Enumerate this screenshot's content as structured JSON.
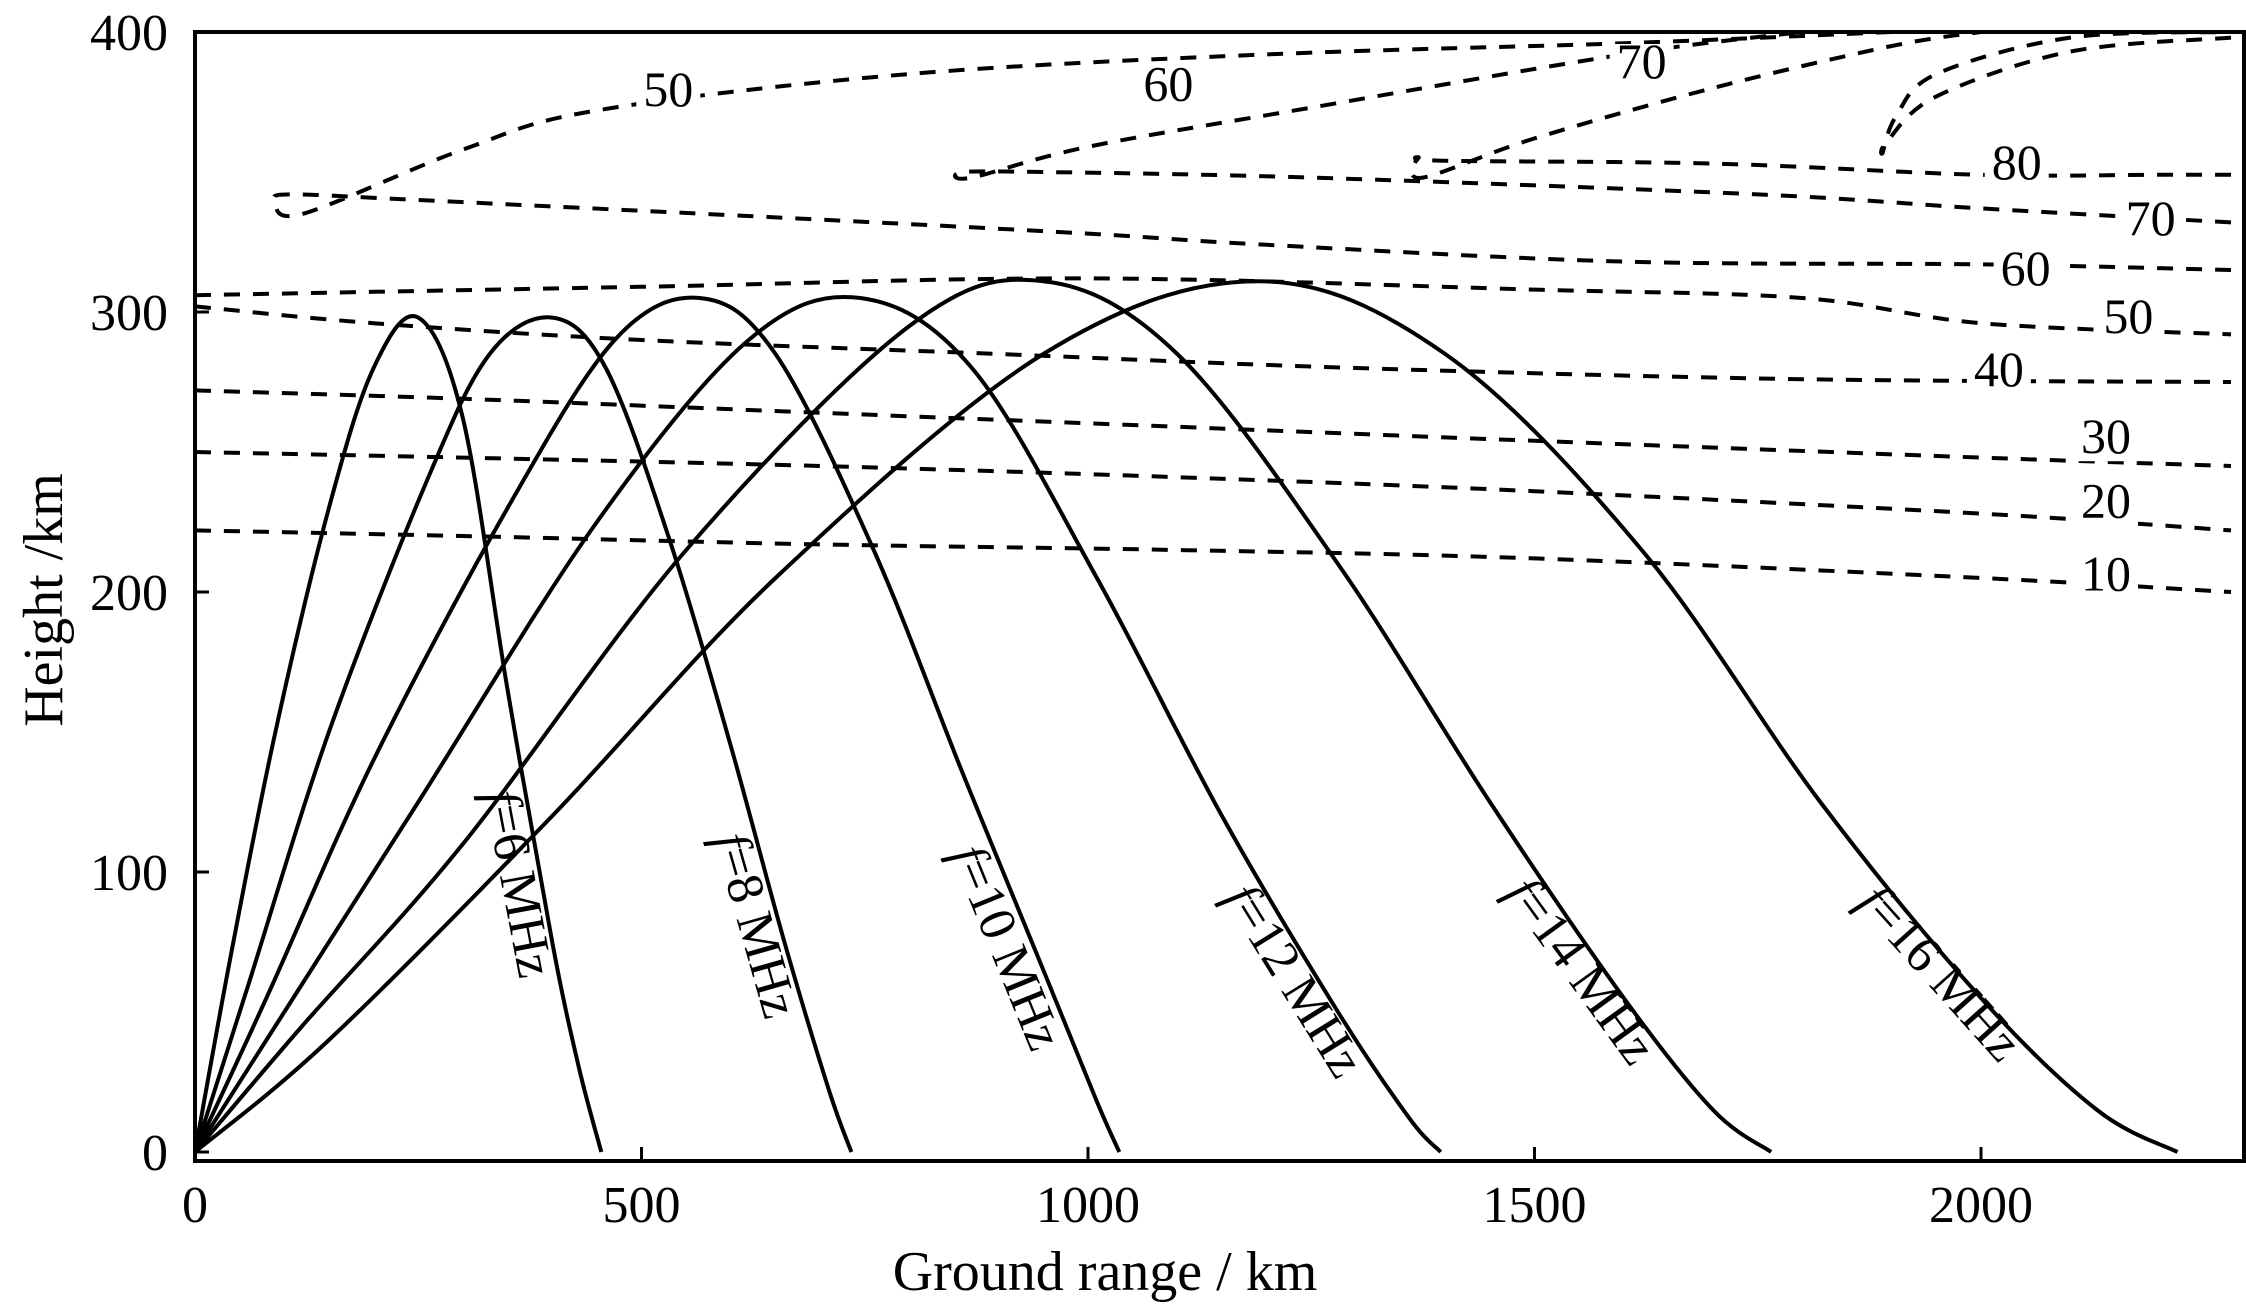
{
  "chart_data": {
    "type": "line",
    "title": "",
    "xlabel": "Ground range / km",
    "ylabel": "Height /km",
    "xlim": [
      0,
      2300
    ],
    "ylim": [
      0,
      400
    ],
    "x_ticks": [
      0,
      500,
      1000,
      1500,
      2000
    ],
    "x_tick_labels": [
      "0",
      "500",
      "1000",
      "1500",
      "2000"
    ],
    "y_ticks": [
      0,
      100,
      200,
      300,
      400
    ],
    "y_tick_labels": [
      "0",
      "100",
      "200",
      "300",
      "400"
    ],
    "rays": [
      {
        "name": "f=6 MHz",
        "f_prefix": "f",
        "rest": "=6 MHz",
        "up": [
          [
            0,
            0
          ],
          [
            40,
            70
          ],
          [
            90,
            150
          ],
          [
            150,
            230
          ],
          [
            200,
            280
          ],
          [
            250,
            298
          ]
        ],
        "down": [
          [
            250,
            298
          ],
          [
            300,
            262
          ],
          [
            350,
            165
          ],
          [
            400,
            75
          ],
          [
            430,
            30
          ],
          [
            455,
            0
          ]
        ]
      },
      {
        "name": "f=8 MHz",
        "f_prefix": "f",
        "rest": "=8 MHz",
        "up": [
          [
            0,
            0
          ],
          [
            60,
            60
          ],
          [
            150,
            150
          ],
          [
            260,
            240
          ],
          [
            330,
            285
          ],
          [
            400,
            298
          ]
        ],
        "down": [
          [
            400,
            298
          ],
          [
            460,
            280
          ],
          [
            530,
            220
          ],
          [
            600,
            145
          ],
          [
            660,
            75
          ],
          [
            710,
            22
          ],
          [
            735,
            0
          ]
        ]
      },
      {
        "name": "f=10 MHz",
        "f_prefix": "f",
        "rest": "=10 MHz",
        "up": [
          [
            0,
            0
          ],
          [
            80,
            55
          ],
          [
            200,
            140
          ],
          [
            350,
            230
          ],
          [
            470,
            290
          ],
          [
            565,
            305
          ]
        ],
        "down": [
          [
            565,
            305
          ],
          [
            650,
            285
          ],
          [
            760,
            215
          ],
          [
            860,
            135
          ],
          [
            950,
            65
          ],
          [
            1010,
            18
          ],
          [
            1035,
            0
          ]
        ]
      },
      {
        "name": "f=12 MHz",
        "f_prefix": "f",
        "rest": "=12 MHz",
        "up": [
          [
            0,
            0
          ],
          [
            100,
            50
          ],
          [
            250,
            125
          ],
          [
            450,
            225
          ],
          [
            620,
            290
          ],
          [
            745,
            305
          ]
        ],
        "down": [
          [
            745,
            305
          ],
          [
            870,
            280
          ],
          [
            1010,
            205
          ],
          [
            1150,
            120
          ],
          [
            1280,
            50
          ],
          [
            1360,
            12
          ],
          [
            1395,
            0
          ]
        ]
      },
      {
        "name": "f=14 MHz",
        "f_prefix": "f",
        "rest": "=14 MHz",
        "up": [
          [
            0,
            0
          ],
          [
            120,
            45
          ],
          [
            300,
            110
          ],
          [
            550,
            215
          ],
          [
            800,
            295
          ],
          [
            950,
            311
          ]
        ],
        "down": [
          [
            950,
            311
          ],
          [
            1100,
            285
          ],
          [
            1280,
            210
          ],
          [
            1450,
            125
          ],
          [
            1600,
            55
          ],
          [
            1700,
            15
          ],
          [
            1765,
            0
          ]
        ]
      },
      {
        "name": "f=16 MHz",
        "f_prefix": "f",
        "rest": "=16 MHz",
        "up": [
          [
            0,
            0
          ],
          [
            150,
            40
          ],
          [
            400,
            120
          ],
          [
            650,
            205
          ],
          [
            950,
            285
          ],
          [
            1190,
            311
          ]
        ],
        "down": [
          [
            1190,
            311
          ],
          [
            1400,
            285
          ],
          [
            1620,
            215
          ],
          [
            1820,
            125
          ],
          [
            2000,
            55
          ],
          [
            2130,
            15
          ],
          [
            2220,
            0
          ]
        ]
      }
    ],
    "contours": [
      {
        "label": "10",
        "points": [
          [
            0,
            222
          ],
          [
            300,
            220
          ],
          [
            700,
            217
          ],
          [
            1100,
            215
          ],
          [
            1500,
            212
          ],
          [
            2000,
            205
          ],
          [
            2280,
            200
          ]
        ]
      },
      {
        "label": "20",
        "points": [
          [
            0,
            250
          ],
          [
            300,
            248
          ],
          [
            700,
            245
          ],
          [
            1100,
            241
          ],
          [
            1500,
            236
          ],
          [
            2000,
            228
          ],
          [
            2280,
            222
          ]
        ]
      },
      {
        "label": "30",
        "points": [
          [
            0,
            272
          ],
          [
            300,
            269
          ],
          [
            700,
            264
          ],
          [
            1100,
            259
          ],
          [
            1500,
            254
          ],
          [
            2000,
            248
          ],
          [
            2280,
            245
          ]
        ]
      },
      {
        "label": "40",
        "points": [
          [
            0,
            302
          ],
          [
            200,
            296
          ],
          [
            500,
            290
          ],
          [
            900,
            285
          ],
          [
            1300,
            280
          ],
          [
            1800,
            276
          ],
          [
            2280,
            275
          ]
        ]
      },
      {
        "label": "50",
        "points": [
          [
            0,
            306
          ],
          [
            500,
            309
          ],
          [
            1000,
            312
          ],
          [
            1500,
            308
          ],
          [
            1800,
            305
          ],
          [
            2000,
            296
          ],
          [
            2280,
            292
          ]
        ]
      },
      {
        "label": "60",
        "points": [
          [
            2280,
            315
          ],
          [
            2000,
            317
          ],
          [
            1600,
            318
          ],
          [
            1200,
            324
          ],
          [
            1000,
            328
          ],
          [
            700,
            333
          ],
          [
            250,
            340
          ],
          [
            110,
            342
          ],
          [
            90,
            340
          ],
          [
            120,
            335
          ],
          [
            300,
            358
          ],
          [
            450,
            372
          ],
          [
            800,
            385
          ],
          [
            1200,
            392
          ],
          [
            1600,
            396
          ],
          [
            1900,
            400
          ]
        ]
      },
      {
        "label": "70",
        "points": [
          [
            2280,
            332
          ],
          [
            2000,
            337
          ],
          [
            1750,
            342
          ],
          [
            1250,
            348
          ],
          [
            950,
            350
          ],
          [
            860,
            350
          ],
          [
            870,
            348
          ],
          [
            1000,
            359
          ],
          [
            1250,
            373
          ],
          [
            1600,
            392
          ],
          [
            1800,
            400
          ]
        ]
      },
      {
        "label": "80",
        "points": [
          [
            2280,
            349
          ],
          [
            2200,
            349
          ],
          [
            2000,
            349
          ],
          [
            1700,
            353
          ],
          [
            1400,
            354
          ],
          [
            1370,
            355
          ],
          [
            1375,
            348
          ],
          [
            1500,
            362
          ],
          [
            1700,
            380
          ],
          [
            1900,
            395
          ],
          [
            2000,
            400
          ]
        ]
      },
      {
        "label": "",
        "points": [
          [
            2280,
            398
          ],
          [
            2100,
            393
          ],
          [
            1950,
            377
          ],
          [
            1895,
            361
          ],
          [
            1890,
            357
          ],
          [
            1905,
            370
          ],
          [
            1950,
            385
          ],
          [
            2100,
            398
          ],
          [
            2280,
            400
          ]
        ]
      }
    ],
    "contour_labels": [
      {
        "text": "50",
        "x": 530,
        "y": 375
      },
      {
        "text": "60",
        "x": 1090,
        "y": 377
      },
      {
        "text": "70",
        "x": 1620,
        "y": 385
      },
      {
        "text": "80",
        "x": 2040,
        "y": 349
      },
      {
        "text": "70",
        "x": 2190,
        "y": 329
      },
      {
        "text": "60",
        "x": 2050,
        "y": 311
      },
      {
        "text": "50",
        "x": 2165,
        "y": 294
      },
      {
        "text": "40",
        "x": 2020,
        "y": 275
      },
      {
        "text": "30",
        "x": 2140,
        "y": 251
      },
      {
        "text": "20",
        "x": 2140,
        "y": 228
      },
      {
        "text": "10",
        "x": 2140,
        "y": 202
      }
    ]
  }
}
